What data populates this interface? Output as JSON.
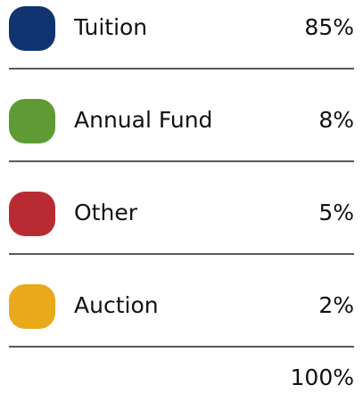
{
  "table": {
    "rows": [
      {
        "label": "Tuition",
        "value": "85%",
        "color": "#0f3470"
      },
      {
        "label": "Annual Fund",
        "value": "8%",
        "color": "#5f9a35"
      },
      {
        "label": "Other",
        "value": "5%",
        "color": "#b82b33"
      },
      {
        "label": "Auction",
        "value": "2%",
        "color": "#e8a91a"
      }
    ],
    "total": "100%"
  }
}
